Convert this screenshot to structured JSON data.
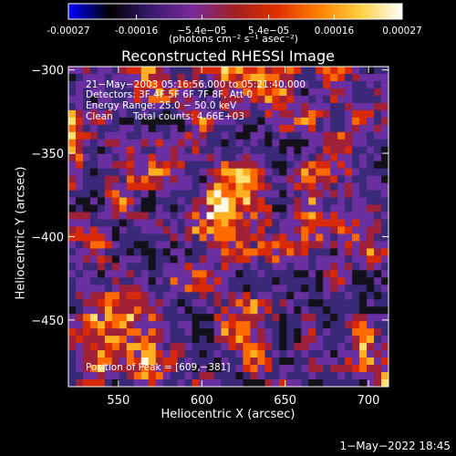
{
  "colorbar": {
    "tick_labels": [
      "-0.00027",
      "-0.00016",
      "−5.4e−05",
      "5.4e−05",
      "0.00016",
      "0.00027"
    ],
    "tick_values": [
      -0.00027,
      -0.00016,
      -5.4e-05,
      5.4e-05,
      0.00016,
      0.00027
    ],
    "unit_label": "(photons cm⁻² s⁻¹ asec⁻²)",
    "colormap": [
      "#0000ff",
      "#000000",
      "#3a1a70",
      "#7a2a9a",
      "#a02020",
      "#e03000",
      "#ff8000",
      "#ffd040",
      "#ffffff"
    ]
  },
  "chart_data": {
    "type": "heatmap",
    "title": "Reconstructed RHESSI Image",
    "xlabel": "Heliocentric X (arcsec)",
    "ylabel": "Heliocentric Y (arcsec)",
    "xlim": [
      520,
      712
    ],
    "ylim": [
      -490,
      -298
    ],
    "x_tick_values": [
      550,
      600,
      650,
      700
    ],
    "x_tick_labels": [
      "550",
      "600",
      "650",
      "700"
    ],
    "y_tick_values": [
      -300,
      -350,
      -400,
      -450
    ],
    "y_tick_labels": [
      "−300",
      "−350",
      "−400",
      "−450"
    ],
    "peak": [
      609,
      -381
    ],
    "annotations": {
      "time_range": "21−May−2003 05:16:56.000 to 05:21:40.000",
      "detectors": "Detectors: 3F 4F 5F 6F 7F 8F, Att 0",
      "energy": "Energy Range: 25.0 − 50.0 keV",
      "clean_label": "Clean",
      "total_counts": "Total counts: 4.66E+03",
      "peak_text": "Position of Peak = [609,−381]"
    }
  },
  "footer": {
    "timestamp": "1−May−2022 18:45"
  }
}
